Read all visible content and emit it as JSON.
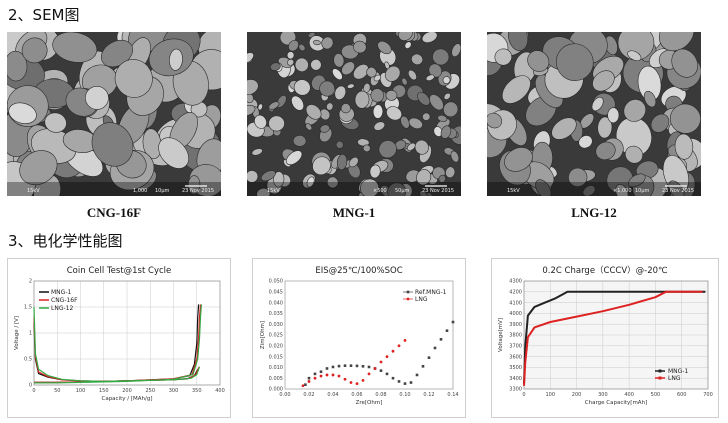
{
  "sections": {
    "sem_title": "2、SEM图",
    "echem_title": "3、电化学性能图"
  },
  "sem_images": [
    {
      "caption": "CNG-16F",
      "meta": [
        "15kV",
        "1,000",
        "10μm",
        "23 Nov 2015"
      ]
    },
    {
      "caption": "MNG-1",
      "meta": [
        "15kV",
        "×500",
        "50μm",
        "23 Nov 2015"
      ]
    },
    {
      "caption": "LNG-12",
      "meta": [
        "15kV",
        "×1,000",
        "10μm",
        "23 Nov 2015"
      ]
    }
  ],
  "chart_data": [
    {
      "type": "line",
      "title": "Coin Cell Test@1st Cycle",
      "xlabel": "Capacity / [MAh/g]",
      "ylabel": "Voltage / [V]",
      "xlim": [
        0,
        400
      ],
      "ylim": [
        0,
        2
      ],
      "xticks": [
        "0",
        "50",
        "100",
        "150",
        "200",
        "250",
        "300",
        "350",
        "400"
      ],
      "yticks": [
        "0",
        "0.5",
        "1",
        "1.5",
        "2"
      ],
      "legend": "top-left",
      "grid": true,
      "series": [
        {
          "name": "MNG-1",
          "color": "#111111",
          "charge": [
            [
              0,
              1.2
            ],
            [
              3,
              0.5
            ],
            [
              10,
              0.22
            ],
            [
              30,
              0.15
            ],
            [
              60,
              0.1
            ],
            [
              100,
              0.08
            ],
            [
              150,
              0.07
            ],
            [
              200,
              0.08
            ],
            [
              250,
              0.09
            ],
            [
              300,
              0.1
            ],
            [
              330,
              0.12
            ],
            [
              345,
              0.18
            ],
            [
              352,
              0.3
            ]
          ],
          "discharge": [
            [
              0,
              0.05
            ],
            [
              50,
              0.05
            ],
            [
              100,
              0.06
            ],
            [
              200,
              0.08
            ],
            [
              300,
              0.12
            ],
            [
              335,
              0.18
            ],
            [
              345,
              0.4
            ],
            [
              350,
              0.8
            ],
            [
              352,
              1.3
            ],
            [
              354,
              1.55
            ]
          ]
        },
        {
          "name": "CNG-16F",
          "color": "#dd2222",
          "charge": [
            [
              0,
              1.3
            ],
            [
              3,
              0.55
            ],
            [
              10,
              0.25
            ],
            [
              30,
              0.16
            ],
            [
              60,
              0.1
            ],
            [
              100,
              0.08
            ],
            [
              150,
              0.07
            ],
            [
              200,
              0.08
            ],
            [
              250,
              0.09
            ],
            [
              300,
              0.1
            ],
            [
              335,
              0.13
            ],
            [
              348,
              0.2
            ],
            [
              355,
              0.35
            ]
          ],
          "discharge": [
            [
              0,
              0.05
            ],
            [
              50,
              0.05
            ],
            [
              100,
              0.06
            ],
            [
              200,
              0.08
            ],
            [
              300,
              0.12
            ],
            [
              340,
              0.2
            ],
            [
              350,
              0.5
            ],
            [
              354,
              0.9
            ],
            [
              356,
              1.3
            ],
            [
              358,
              1.55
            ]
          ]
        },
        {
          "name": "LNG-12",
          "color": "#33aa44",
          "charge": [
            [
              0,
              1.5
            ],
            [
              3,
              0.6
            ],
            [
              10,
              0.3
            ],
            [
              30,
              0.18
            ],
            [
              60,
              0.11
            ],
            [
              100,
              0.08
            ],
            [
              150,
              0.07
            ],
            [
              200,
              0.08
            ],
            [
              250,
              0.09
            ],
            [
              300,
              0.1
            ],
            [
              338,
              0.13
            ],
            [
              350,
              0.2
            ],
            [
              356,
              0.35
            ]
          ],
          "discharge": [
            [
              0,
              0.04
            ],
            [
              50,
              0.04
            ],
            [
              100,
              0.05
            ],
            [
              200,
              0.07
            ],
            [
              300,
              0.11
            ],
            [
              342,
              0.2
            ],
            [
              352,
              0.5
            ],
            [
              356,
              0.9
            ],
            [
              358,
              1.3
            ],
            [
              360,
              1.55
            ]
          ]
        }
      ]
    },
    {
      "type": "scatter",
      "title": "EIS@25℃/100%SOC",
      "xlabel": "Zre[Ohm]",
      "ylabel": "Zim[Ohm]",
      "xlim": [
        0,
        0.14
      ],
      "ylim": [
        0,
        0.05
      ],
      "xticks": [
        "0.00",
        "0.02",
        "0.04",
        "0.06",
        "0.08",
        "0.10",
        "0.12",
        "0.14"
      ],
      "yticks": [
        "0.000",
        "0.005",
        "0.010",
        "0.015",
        "0.020",
        "0.025",
        "0.030",
        "0.035",
        "0.040",
        "0.045",
        "0.050"
      ],
      "legend": "top-right",
      "series": [
        {
          "name": "Ref.MNG-1",
          "color": "#444444",
          "points": [
            [
              0.017,
              0.002
            ],
            [
              0.02,
              0.005
            ],
            [
              0.025,
              0.007
            ],
            [
              0.03,
              0.008
            ],
            [
              0.035,
              0.0095
            ],
            [
              0.04,
              0.0102
            ],
            [
              0.045,
              0.0106
            ],
            [
              0.05,
              0.0108
            ],
            [
              0.055,
              0.0108
            ],
            [
              0.06,
              0.0107
            ],
            [
              0.065,
              0.0105
            ],
            [
              0.07,
              0.0102
            ],
            [
              0.075,
              0.0095
            ],
            [
              0.08,
              0.0085
            ],
            [
              0.085,
              0.007
            ],
            [
              0.09,
              0.005
            ],
            [
              0.095,
              0.0035
            ],
            [
              0.1,
              0.0025
            ],
            [
              0.105,
              0.003
            ],
            [
              0.11,
              0.0065
            ],
            [
              0.115,
              0.0105
            ],
            [
              0.12,
              0.0145
            ],
            [
              0.125,
              0.019
            ],
            [
              0.13,
              0.023
            ],
            [
              0.135,
              0.027
            ],
            [
              0.14,
              0.031
            ]
          ]
        },
        {
          "name": "LNG",
          "color": "#dd2222",
          "points": [
            [
              0.015,
              0.0015
            ],
            [
              0.02,
              0.0035
            ],
            [
              0.025,
              0.005
            ],
            [
              0.03,
              0.006
            ],
            [
              0.035,
              0.0065
            ],
            [
              0.04,
              0.0065
            ],
            [
              0.045,
              0.006
            ],
            [
              0.05,
              0.0045
            ],
            [
              0.055,
              0.003
            ],
            [
              0.06,
              0.0025
            ],
            [
              0.065,
              0.004
            ],
            [
              0.07,
              0.007
            ],
            [
              0.075,
              0.0095
            ],
            [
              0.08,
              0.0125
            ],
            [
              0.085,
              0.015
            ],
            [
              0.09,
              0.0175
            ],
            [
              0.095,
              0.02
            ],
            [
              0.1,
              0.0225
            ]
          ]
        }
      ]
    },
    {
      "type": "line",
      "title": "0.2C Charge（CCCV）@-20℃",
      "xlabel": "Charge Capacity[mAh]",
      "ylabel": "Voltage[mV]",
      "xlim": [
        0,
        700
      ],
      "ylim": [
        3300,
        4300
      ],
      "xticks": [
        "0",
        "100",
        "200",
        "300",
        "400",
        "500",
        "600",
        "700"
      ],
      "yticks": [
        "3300",
        "3400",
        "3500",
        "3600",
        "3700",
        "3800",
        "3900",
        "4000",
        "4100",
        "4200",
        "4300"
      ],
      "legend": "bottom-right",
      "grid": true,
      "series": [
        {
          "name": "MNG-1",
          "color": "#222222",
          "points": [
            [
              0,
              3350
            ],
            [
              5,
              3700
            ],
            [
              15,
              3980
            ],
            [
              40,
              4060
            ],
            [
              80,
              4100
            ],
            [
              120,
              4140
            ],
            [
              150,
              4180
            ],
            [
              165,
              4200
            ],
            [
              650,
              4200
            ],
            [
              690,
              4200
            ]
          ]
        },
        {
          "name": "LNG",
          "color": "#dd2222",
          "points": [
            [
              0,
              3330
            ],
            [
              5,
              3550
            ],
            [
              15,
              3780
            ],
            [
              40,
              3870
            ],
            [
              100,
              3920
            ],
            [
              200,
              3970
            ],
            [
              300,
              4020
            ],
            [
              400,
              4080
            ],
            [
              500,
              4150
            ],
            [
              540,
              4200
            ],
            [
              680,
              4200
            ]
          ]
        }
      ]
    }
  ]
}
